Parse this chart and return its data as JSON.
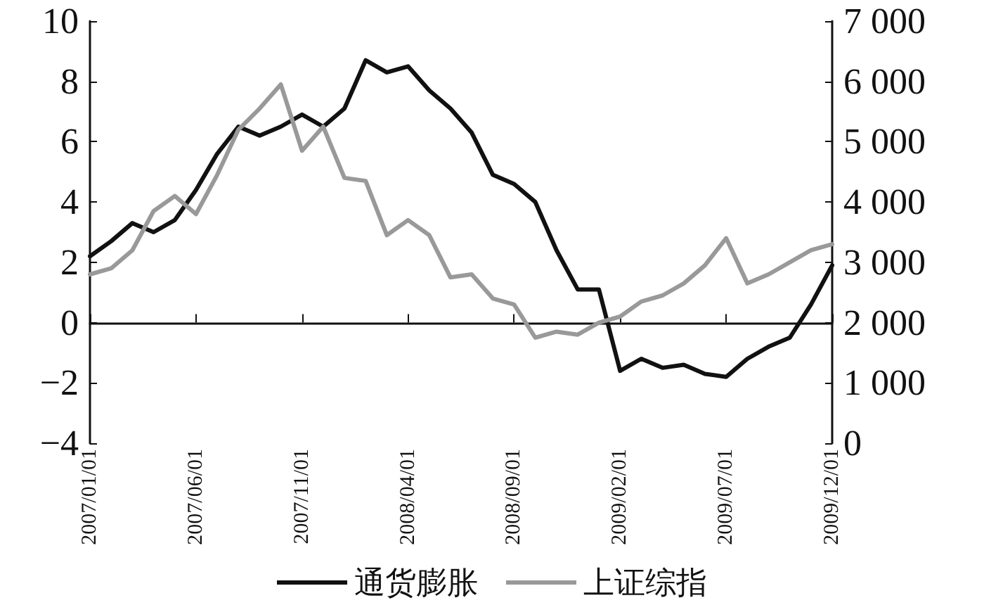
{
  "chart_data": {
    "type": "line",
    "categories": [
      "2007/01/01",
      null,
      null,
      null,
      null,
      "2007/06/01",
      null,
      null,
      null,
      null,
      "2007/11/01",
      null,
      null,
      null,
      null,
      "2008/04/01",
      null,
      null,
      null,
      null,
      "2008/09/01",
      null,
      null,
      null,
      null,
      "2009/02/01",
      null,
      null,
      null,
      null,
      "2009/07/01",
      null,
      null,
      null,
      null,
      "2009/12/01"
    ],
    "series": [
      {
        "name": "通货膨胀",
        "color": "#111111",
        "values": [
          2.2,
          2.7,
          3.3,
          3.0,
          3.4,
          4.4,
          5.6,
          6.5,
          6.2,
          6.5,
          6.9,
          6.5,
          7.1,
          8.7,
          8.3,
          8.5,
          7.7,
          7.1,
          6.3,
          4.9,
          4.6,
          4.0,
          2.4,
          1.1,
          1.1,
          -1.6,
          -1.2,
          -1.5,
          -1.4,
          -1.7,
          -1.8,
          -1.2,
          -0.8,
          -0.5,
          0.6,
          1.9
        ]
      },
      {
        "name": "上证综指",
        "color": "#999999",
        "axis": "y2",
        "values": [
          2800,
          2900,
          3200,
          3850,
          4100,
          3800,
          4450,
          5200,
          5550,
          5950,
          4850,
          5250,
          4400,
          4350,
          3450,
          3700,
          3450,
          2750,
          2800,
          2400,
          2300,
          1750,
          1850,
          1800,
          2000,
          2100,
          2350,
          2450,
          2650,
          2950,
          3400,
          2650,
          2800,
          3000,
          3200,
          3300
        ]
      }
    ],
    "ylim": [
      -4,
      10
    ],
    "yticks": [
      {
        "value": -4,
        "label": "−4"
      },
      {
        "value": -2,
        "label": "−2"
      },
      0,
      2,
      4,
      6,
      8,
      10
    ],
    "y2lim": [
      0,
      7000
    ],
    "y2ticks": [
      0,
      {
        "value": 1000,
        "label": "1 000"
      },
      {
        "value": 2000,
        "label": "2 000"
      },
      {
        "value": 3000,
        "label": "3 000"
      },
      {
        "value": 4000,
        "label": "4 000"
      },
      {
        "value": 5000,
        "label": "5 000"
      },
      {
        "value": 6000,
        "label": "6 000"
      },
      {
        "value": 7000,
        "label": "7 000"
      }
    ],
    "legend": "bottom",
    "marker": "none",
    "line_style": "solid"
  }
}
